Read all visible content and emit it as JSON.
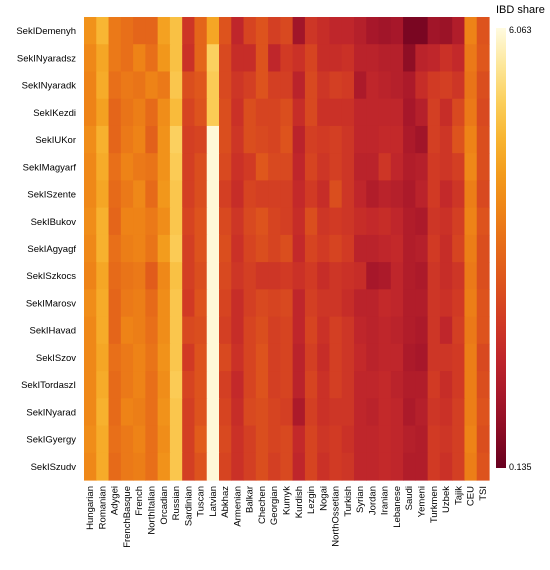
{
  "chart_data": {
    "type": "heatmap",
    "title": "",
    "xlabel": "",
    "ylabel": "",
    "rows": [
      "SekIDemenyh",
      "SekINyaradsz",
      "SekINyaradk",
      "SekIKezdi",
      "SekIUKor",
      "SekIMagyarf",
      "SekISzente",
      "SekIBukov",
      "SekIAgyagf",
      "SekISzkocs",
      "SekIMarosv",
      "SekIHavad",
      "SekISzov",
      "SekITordaszI",
      "SekINyarad",
      "SekIGyergy",
      "SekISzudv"
    ],
    "columns": [
      "Hungarian",
      "Romanian",
      "Adygei",
      "FrenchBasque",
      "French",
      "NorthItalian",
      "Orcadian",
      "Russian",
      "Sardinian",
      "Tuscan",
      "Latvian",
      "Abkhaz",
      "Armenian",
      "Balkar",
      "Chechen",
      "Georgian",
      "Kumyk",
      "Kurdish",
      "Lezgin",
      "Nogai",
      "NorthOssetian",
      "Turkish",
      "Syrian",
      "Jordan",
      "Iranian",
      "Lebanese",
      "Saudi",
      "Yemeni",
      "Turkmen",
      "Uzbek",
      "Tajik",
      "CEU",
      "TSI"
    ],
    "legend": {
      "title": "IBD share",
      "max_label": "6.063",
      "min_label": "0.135",
      "max": 6.063,
      "min": 0.135,
      "position": "top-right"
    },
    "colormap": [
      "#67001f",
      "#8b0c24",
      "#a8182a",
      "#c0262b",
      "#d13a24",
      "#dd531d",
      "#e66a19",
      "#ee8317",
      "#f39b1c",
      "#f8b531",
      "#fbcf5c",
      "#fde79a",
      "#fffbe0"
    ],
    "values": [
      [
        3.9,
        4.6,
        3.4,
        3.2,
        3.0,
        3.0,
        4.2,
        4.8,
        2.0,
        3.0,
        4.3,
        2.6,
        1.6,
        2.3,
        2.6,
        2.2,
        2.4,
        1.0,
        2.0,
        1.8,
        1.6,
        1.6,
        1.4,
        1.1,
        1.0,
        1.1,
        0.4,
        0.4,
        1.0,
        0.9,
        1.3,
        3.6,
        2.6
      ],
      [
        3.7,
        4.3,
        3.4,
        3.2,
        3.6,
        3.2,
        4.0,
        4.8,
        1.9,
        3.0,
        5.1,
        2.4,
        1.8,
        1.8,
        2.6,
        1.6,
        2.1,
        1.9,
        2.3,
        1.8,
        1.8,
        1.9,
        1.5,
        1.5,
        1.4,
        1.4,
        0.7,
        1.5,
        1.6,
        1.9,
        1.7,
        3.4,
        2.7
      ],
      [
        3.6,
        4.4,
        3.2,
        3.4,
        3.3,
        3.6,
        3.4,
        4.9,
        2.5,
        2.7,
        5.0,
        2.4,
        2.0,
        2.2,
        2.6,
        2.2,
        2.2,
        1.5,
        2.4,
        2.0,
        2.2,
        2.1,
        1.2,
        1.6,
        1.5,
        1.4,
        1.2,
        1.8,
        2.1,
        2.2,
        2.0,
        3.3,
        2.5
      ],
      [
        3.6,
        4.2,
        3.0,
        3.3,
        3.5,
        3.1,
        3.8,
        4.7,
        2.3,
        2.6,
        5.0,
        2.5,
        1.9,
        2.5,
        2.3,
        2.3,
        2.5,
        1.8,
        2.4,
        1.9,
        1.9,
        1.9,
        1.6,
        1.6,
        1.6,
        1.6,
        1.1,
        1.4,
        2.2,
        1.8,
        2.4,
        3.4,
        2.4
      ],
      [
        3.8,
        4.5,
        3.0,
        3.4,
        3.6,
        2.9,
        3.9,
        5.1,
        2.2,
        2.3,
        6.0,
        2.5,
        2.0,
        2.5,
        2.4,
        2.3,
        2.6,
        1.5,
        2.2,
        2.1,
        2.2,
        2.0,
        1.6,
        1.6,
        1.7,
        1.7,
        1.2,
        1.0,
        2.2,
        2.0,
        2.6,
        3.6,
        2.5
      ],
      [
        3.7,
        4.4,
        3.2,
        3.6,
        3.4,
        3.3,
        3.9,
        5.0,
        2.2,
        2.5,
        6.0,
        2.4,
        1.9,
        2.1,
        2.7,
        2.4,
        2.4,
        1.6,
        2.3,
        2.0,
        2.2,
        2.0,
        1.5,
        1.5,
        2.0,
        1.6,
        1.3,
        1.4,
        2.1,
        2.0,
        2.2,
        3.7,
        2.5
      ],
      [
        3.7,
        4.3,
        3.1,
        3.4,
        3.7,
        3.1,
        4.0,
        4.9,
        2.2,
        2.5,
        6.0,
        2.2,
        1.8,
        2.3,
        2.2,
        2.2,
        2.2,
        1.7,
        2.1,
        1.8,
        2.5,
        2.0,
        1.6,
        1.3,
        1.5,
        1.4,
        1.2,
        1.5,
        2.1,
        1.7,
        2.0,
        3.5,
        2.4
      ],
      [
        3.8,
        4.5,
        3.0,
        3.6,
        3.6,
        3.4,
        3.8,
        4.9,
        2.3,
        2.6,
        6.0,
        2.4,
        2.0,
        2.4,
        2.6,
        2.3,
        2.2,
        1.8,
        2.5,
        2.0,
        2.1,
        2.0,
        1.8,
        1.7,
        1.8,
        1.6,
        1.3,
        1.2,
        2.0,
        1.9,
        2.2,
        3.6,
        2.6
      ],
      [
        3.7,
        4.5,
        3.2,
        3.5,
        3.6,
        3.3,
        4.1,
        5.0,
        2.2,
        2.6,
        6.0,
        2.5,
        1.9,
        2.3,
        2.5,
        2.3,
        2.5,
        1.7,
        2.3,
        2.1,
        2.3,
        2.1,
        1.5,
        1.5,
        1.6,
        1.7,
        1.3,
        1.4,
        2.1,
        1.8,
        2.3,
        3.5,
        2.5
      ],
      [
        3.6,
        4.3,
        3.1,
        3.3,
        3.4,
        2.8,
        3.7,
        4.8,
        2.2,
        2.5,
        6.0,
        2.4,
        2.0,
        2.2,
        2.0,
        2.0,
        2.1,
        1.9,
        2.1,
        1.8,
        2.0,
        1.9,
        1.8,
        1.1,
        1.2,
        1.6,
        1.3,
        1.2,
        2.0,
        1.8,
        2.0,
        3.4,
        2.5
      ],
      [
        3.8,
        4.4,
        3.0,
        3.4,
        3.5,
        3.1,
        3.8,
        4.9,
        2.1,
        2.6,
        6.0,
        2.3,
        1.8,
        2.2,
        2.4,
        2.3,
        2.4,
        1.6,
        2.2,
        2.0,
        2.0,
        1.8,
        1.5,
        1.5,
        1.7,
        1.6,
        1.3,
        1.3,
        2.0,
        1.9,
        2.1,
        3.5,
        2.6
      ],
      [
        3.7,
        4.4,
        3.0,
        3.6,
        3.5,
        3.2,
        3.8,
        4.9,
        2.4,
        2.5,
        6.0,
        2.2,
        1.8,
        2.3,
        2.5,
        2.2,
        2.3,
        1.6,
        2.3,
        1.9,
        2.2,
        2.0,
        1.6,
        1.5,
        1.6,
        1.5,
        1.3,
        1.2,
        2.0,
        1.6,
        2.2,
        3.4,
        2.6
      ],
      [
        3.7,
        4.3,
        3.2,
        3.4,
        3.6,
        3.3,
        3.9,
        4.9,
        2.1,
        2.6,
        6.0,
        2.4,
        1.9,
        2.3,
        2.6,
        2.2,
        2.3,
        1.5,
        2.2,
        1.8,
        2.2,
        2.0,
        1.7,
        1.5,
        1.6,
        1.6,
        1.2,
        1.1,
        2.0,
        2.0,
        2.1,
        3.5,
        2.4
      ],
      [
        3.7,
        4.4,
        3.1,
        3.4,
        3.6,
        3.2,
        3.8,
        5.0,
        2.3,
        2.6,
        6.0,
        2.2,
        1.7,
        2.3,
        2.6,
        2.2,
        2.3,
        1.5,
        2.3,
        1.9,
        2.2,
        2.0,
        1.6,
        1.6,
        1.7,
        1.5,
        1.3,
        1.3,
        2.1,
        1.8,
        2.1,
        3.5,
        2.5
      ],
      [
        3.7,
        4.5,
        3.1,
        3.6,
        3.5,
        3.2,
        3.9,
        4.9,
        2.2,
        2.6,
        6.0,
        2.3,
        1.8,
        2.4,
        2.5,
        2.3,
        2.2,
        1.2,
        2.2,
        1.9,
        2.0,
        2.0,
        1.6,
        1.5,
        1.7,
        1.6,
        1.2,
        1.4,
        2.0,
        1.9,
        2.2,
        3.5,
        2.6
      ],
      [
        3.8,
        4.4,
        3.2,
        3.4,
        3.6,
        3.2,
        3.8,
        4.9,
        2.2,
        2.8,
        6.0,
        2.4,
        1.9,
        2.2,
        2.5,
        2.3,
        2.4,
        1.7,
        2.3,
        2.0,
        2.1,
        1.9,
        1.6,
        1.6,
        1.7,
        1.6,
        1.4,
        1.3,
        2.1,
        2.0,
        2.2,
        3.6,
        2.5
      ],
      [
        3.7,
        4.4,
        3.1,
        3.4,
        3.5,
        3.2,
        3.9,
        4.9,
        2.2,
        2.6,
        6.0,
        2.3,
        1.9,
        2.2,
        2.5,
        2.2,
        2.4,
        1.6,
        2.3,
        1.9,
        2.1,
        2.0,
        1.6,
        1.6,
        1.7,
        1.6,
        1.3,
        1.3,
        2.1,
        1.9,
        2.2,
        3.5,
        2.6
      ]
    ]
  }
}
